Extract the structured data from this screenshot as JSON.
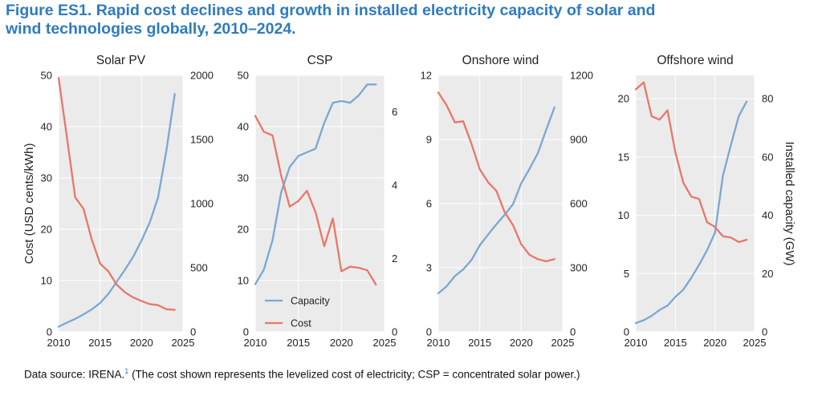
{
  "figure": {
    "title_line1": "Figure ES1. Rapid cost declines and growth in installed electricity capacity of solar and",
    "title_line2": "wind technologies globally, 2010–2024.",
    "source_text": "Data source: IRENA.",
    "source_footnote": "1",
    "source_note": " (The cost shown represents the levelized cost of electricity; CSP = concentrated solar power.)",
    "left_axis_label": "Cost (USD cents/kWh)",
    "right_axis_label": "Installed capacity (GW)"
  },
  "colors": {
    "capacity": "#7aa7d1",
    "cost": "#e8776a",
    "panel_bg": "#ebebeb",
    "grid": "#ffffff",
    "title": "#2e7bbf"
  },
  "chart_data": [
    {
      "type": "line",
      "title": "Solar PV",
      "x": [
        2010,
        2011,
        2012,
        2013,
        2014,
        2015,
        2016,
        2017,
        2018,
        2019,
        2020,
        2021,
        2022,
        2023,
        2024
      ],
      "xlim": [
        2010,
        2025
      ],
      "xticks": [
        2010,
        2015,
        2020,
        2025
      ],
      "ylim": [
        0,
        50
      ],
      "yticks": [
        0,
        10,
        20,
        30,
        40,
        50
      ],
      "y2lim": [
        0,
        2000
      ],
      "y2ticks": [
        0,
        500,
        1000,
        1500,
        2000
      ],
      "series": [
        {
          "name": "Capacity",
          "axis": "right",
          "values": [
            40,
            72,
            101,
            136,
            175,
            225,
            296,
            390,
            485,
            586,
            712,
            855,
            1050,
            1415,
            1855
          ]
        },
        {
          "name": "Cost",
          "axis": "left",
          "values": [
            49.5,
            38,
            26.2,
            24,
            18,
            13.3,
            11.8,
            9.2,
            7.7,
            6.7,
            6.0,
            5.4,
            5.2,
            4.4,
            4.3
          ]
        }
      ]
    },
    {
      "type": "line",
      "title": "CSP",
      "x": [
        2010,
        2011,
        2012,
        2013,
        2014,
        2015,
        2016,
        2017,
        2018,
        2019,
        2020,
        2021,
        2022,
        2023,
        2024
      ],
      "xlim": [
        2010,
        2025
      ],
      "xticks": [
        2010,
        2015,
        2020,
        2025
      ],
      "ylim": [
        0,
        50
      ],
      "yticks": [
        0,
        10,
        20,
        30,
        40,
        50
      ],
      "y2lim": [
        0,
        7
      ],
      "y2ticks": [
        0,
        2,
        4,
        6
      ],
      "legend_position": "lower-left",
      "series": [
        {
          "name": "Capacity",
          "axis": "right",
          "values": [
            1.3,
            1.7,
            2.5,
            3.8,
            4.5,
            4.8,
            4.9,
            5.0,
            5.7,
            6.25,
            6.3,
            6.25,
            6.45,
            6.75,
            6.75
          ]
        },
        {
          "name": "Cost",
          "axis": "left",
          "values": [
            42.1,
            39,
            38.3,
            30.5,
            24.4,
            25.5,
            27.5,
            23.3,
            16.7,
            22.1,
            11.8,
            12.7,
            12.5,
            12.0,
            9.2
          ]
        }
      ]
    },
    {
      "type": "line",
      "title": "Onshore wind",
      "x": [
        2010,
        2011,
        2012,
        2013,
        2014,
        2015,
        2016,
        2017,
        2018,
        2019,
        2020,
        2021,
        2022,
        2023,
        2024
      ],
      "xlim": [
        2010,
        2025
      ],
      "xticks": [
        2010,
        2015,
        2020,
        2025
      ],
      "ylim": [
        0,
        12
      ],
      "yticks": [
        0,
        3,
        6,
        9,
        12
      ],
      "y2lim": [
        0,
        1200
      ],
      "y2ticks": [
        0,
        300,
        600,
        900,
        1200
      ],
      "series": [
        {
          "name": "Capacity",
          "axis": "right",
          "values": [
            180,
            213,
            261,
            292,
            336,
            405,
            455,
            503,
            548,
            597,
            695,
            763,
            836,
            944,
            1050
          ]
        },
        {
          "name": "Cost",
          "axis": "left",
          "values": [
            11.2,
            10.6,
            9.8,
            9.85,
            8.8,
            7.6,
            7.0,
            6.6,
            5.6,
            5.0,
            4.1,
            3.6,
            3.4,
            3.3,
            3.4
          ]
        }
      ]
    },
    {
      "type": "line",
      "title": "Offshore wind",
      "x": [
        2010,
        2011,
        2012,
        2013,
        2014,
        2015,
        2016,
        2017,
        2018,
        2019,
        2020,
        2021,
        2022,
        2023,
        2024
      ],
      "xlim": [
        2010,
        2025
      ],
      "xticks": [
        2010,
        2015,
        2020,
        2025
      ],
      "ylim": [
        0,
        22
      ],
      "yticks": [
        0,
        5,
        10,
        15,
        20
      ],
      "y2lim": [
        0,
        88
      ],
      "y2ticks": [
        0,
        20,
        40,
        60,
        80
      ],
      "series": [
        {
          "name": "Capacity",
          "axis": "right",
          "values": [
            3,
            4,
            5.5,
            7.5,
            9,
            12,
            14.5,
            18.5,
            23,
            28,
            34,
            53.5,
            64,
            74,
            79
          ]
        },
        {
          "name": "Cost",
          "axis": "left",
          "values": [
            20.8,
            21.4,
            18.5,
            18.2,
            19.0,
            15.4,
            12.8,
            11.6,
            11.4,
            9.4,
            9.0,
            8.2,
            8.1,
            7.7,
            7.9
          ]
        }
      ]
    }
  ]
}
